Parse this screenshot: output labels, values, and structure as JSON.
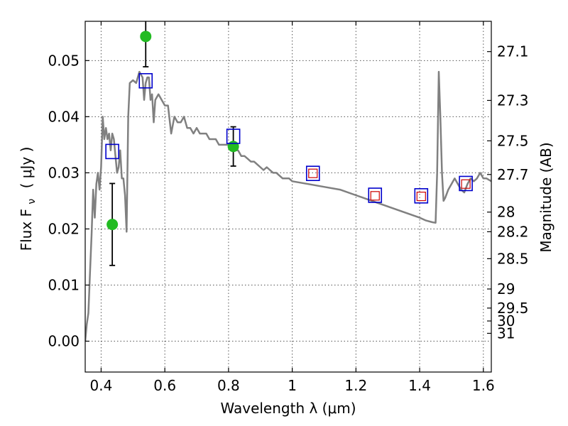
{
  "chart_data": {
    "type": "line",
    "xlabel": "Wavelength  λ (μm)",
    "ylabel_left": "Flux  F",
    "ylabel_left_sub": "ν",
    "ylabel_left_unit": "( μJy )",
    "ylabel_right": "Magnitude (AB)",
    "xlim": [
      0.35,
      1.625
    ],
    "ylim": [
      -0.0055,
      0.057
    ],
    "x_ticks": [
      {
        "value": 0.4,
        "label": "0.4"
      },
      {
        "value": 0.6,
        "label": "0.6"
      },
      {
        "value": 0.8,
        "label": "0.8"
      },
      {
        "value": 1.0,
        "label": "1"
      },
      {
        "value": 1.2,
        "label": "1.2"
      },
      {
        "value": 1.4,
        "label": "1.4"
      },
      {
        "value": 1.6,
        "label": "1.6"
      }
    ],
    "y_ticks": [
      {
        "value": 0.0,
        "label": "0.00"
      },
      {
        "value": 0.01,
        "label": "0.01"
      },
      {
        "value": 0.02,
        "label": "0.02"
      },
      {
        "value": 0.03,
        "label": "0.03"
      },
      {
        "value": 0.04,
        "label": "0.04"
      },
      {
        "value": 0.05,
        "label": "0.05"
      }
    ],
    "mag_ticks": [
      {
        "label": "27.1",
        "flux": 0.0516
      },
      {
        "label": "27.3",
        "flux": 0.0429
      },
      {
        "label": "27.5",
        "flux": 0.0357
      },
      {
        "label": "27.7",
        "flux": 0.0297
      },
      {
        "label": "28",
        "flux": 0.023
      },
      {
        "label": "28.2",
        "flux": 0.0195
      },
      {
        "label": "28.5",
        "flux": 0.0147
      },
      {
        "label": "29",
        "flux": 0.0093
      },
      {
        "label": "29.5",
        "flux": 0.0059
      },
      {
        "label": "30",
        "flux": 0.0036
      },
      {
        "label": "31",
        "flux": 0.0014
      }
    ],
    "grid": true,
    "colors": {
      "model": "#808080",
      "points": "#22bb22",
      "model_boxes": "#0000cc",
      "obs_boxes": "#cc0000",
      "errorbars": "#000000"
    },
    "series": [
      {
        "kind": "model_spectrum",
        "x": [
          0.35,
          0.355,
          0.36,
          0.365,
          0.37,
          0.375,
          0.38,
          0.385,
          0.39,
          0.395,
          0.4,
          0.405,
          0.41,
          0.415,
          0.42,
          0.425,
          0.43,
          0.435,
          0.44,
          0.445,
          0.45,
          0.455,
          0.46,
          0.465,
          0.47,
          0.475,
          0.48,
          0.485,
          0.49,
          0.5,
          0.51,
          0.52,
          0.525,
          0.53,
          0.535,
          0.54,
          0.545,
          0.55,
          0.555,
          0.56,
          0.565,
          0.57,
          0.58,
          0.59,
          0.6,
          0.61,
          0.62,
          0.63,
          0.64,
          0.65,
          0.66,
          0.67,
          0.68,
          0.69,
          0.7,
          0.71,
          0.72,
          0.73,
          0.74,
          0.75,
          0.76,
          0.77,
          0.78,
          0.79,
          0.8,
          0.81,
          0.82,
          0.83,
          0.84,
          0.85,
          0.86,
          0.87,
          0.88,
          0.89,
          0.9,
          0.91,
          0.92,
          0.93,
          0.94,
          0.95,
          0.96,
          0.97,
          0.98,
          0.99,
          1.0,
          1.05,
          1.1,
          1.15,
          1.2,
          1.25,
          1.3,
          1.35,
          1.4,
          1.42,
          1.44,
          1.45,
          1.455,
          1.46,
          1.465,
          1.47,
          1.475,
          1.48,
          1.49,
          1.5,
          1.51,
          1.52,
          1.53,
          1.54,
          1.55,
          1.56,
          1.57,
          1.58,
          1.59,
          1.6,
          1.61,
          1.625
        ],
        "y": [
          0.0,
          0.003,
          0.005,
          0.012,
          0.019,
          0.027,
          0.022,
          0.028,
          0.03,
          0.027,
          0.031,
          0.04,
          0.036,
          0.038,
          0.036,
          0.037,
          0.034,
          0.037,
          0.036,
          0.033,
          0.03,
          0.031,
          0.034,
          0.029,
          0.029,
          0.026,
          0.0195,
          0.04,
          0.046,
          0.0465,
          0.046,
          0.048,
          0.0475,
          0.047,
          0.043,
          0.046,
          0.047,
          0.047,
          0.043,
          0.044,
          0.039,
          0.043,
          0.044,
          0.043,
          0.042,
          0.042,
          0.037,
          0.04,
          0.039,
          0.039,
          0.04,
          0.038,
          0.038,
          0.037,
          0.038,
          0.037,
          0.037,
          0.037,
          0.036,
          0.036,
          0.036,
          0.035,
          0.035,
          0.035,
          0.035,
          0.034,
          0.034,
          0.034,
          0.033,
          0.033,
          0.0325,
          0.032,
          0.032,
          0.0315,
          0.031,
          0.0305,
          0.031,
          0.0305,
          0.03,
          0.03,
          0.0295,
          0.029,
          0.029,
          0.029,
          0.0285,
          0.028,
          0.0275,
          0.027,
          0.026,
          0.025,
          0.024,
          0.023,
          0.022,
          0.0215,
          0.0212,
          0.0211,
          0.03,
          0.048,
          0.04,
          0.03,
          0.025,
          0.0255,
          0.027,
          0.028,
          0.029,
          0.028,
          0.027,
          0.0265,
          0.028,
          0.029,
          0.0285,
          0.029,
          0.03,
          0.029,
          0.029,
          0.0285
        ]
      },
      {
        "kind": "observed_points_with_errorbars",
        "points": [
          {
            "x": 0.435,
            "y": 0.0208,
            "err_low": 0.0073,
            "err_high": 0.0073
          },
          {
            "x": 0.54,
            "y": 0.0543,
            "err_low": 0.0054,
            "err_high": 0.0054
          },
          {
            "x": 0.815,
            "y": 0.0347,
            "err_low": 0.0035,
            "err_high": 0.0035
          }
        ]
      },
      {
        "kind": "model_bandpass_boxes",
        "x": [
          0.435,
          0.54,
          0.815,
          1.065,
          1.26,
          1.405,
          1.545
        ],
        "y": [
          0.0338,
          0.0464,
          0.0365,
          0.0299,
          0.026,
          0.0259,
          0.0281
        ]
      },
      {
        "kind": "observed_bandpass_boxes",
        "x": [
          1.065,
          1.26,
          1.405,
          1.545
        ],
        "y": [
          0.0299,
          0.0259,
          0.0258,
          0.028
        ]
      }
    ]
  }
}
